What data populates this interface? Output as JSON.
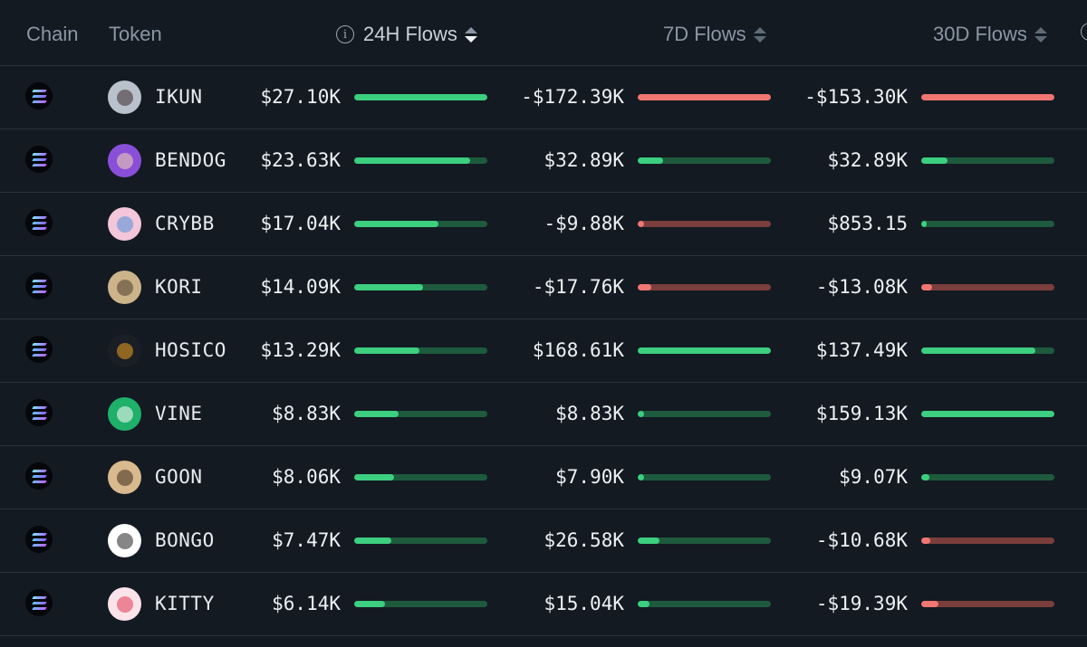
{
  "header": {
    "chain": "Chain",
    "token": "Token",
    "flows_24h": "24H Flows",
    "flows_7d": "7D Flows",
    "flows_30d": "30D Flows"
  },
  "colors": {
    "positive": "#3ccf7f",
    "negative": "#f07672",
    "background": "#131a22"
  },
  "rows": [
    {
      "symbol": "IKUN",
      "avatar": {
        "bg": "#b9c2cc",
        "fg": "#3a2a2a",
        "icon": "ikun-avatar"
      },
      "f24": {
        "text": "$27.10K",
        "fill": 1.0,
        "sign": "pos"
      },
      "f7": {
        "text": "-$172.39K",
        "fill": 1.0,
        "sign": "neg"
      },
      "f30": {
        "text": "-$153.30K",
        "fill": 1.0,
        "sign": "neg"
      }
    },
    {
      "symbol": "BENDOG",
      "avatar": {
        "bg": "#8a4fd8",
        "fg": "#f6d9b0",
        "icon": "bendog-avatar"
      },
      "f24": {
        "text": "$23.63K",
        "fill": 0.87,
        "sign": "pos"
      },
      "f7": {
        "text": "$32.89K",
        "fill": 0.19,
        "sign": "pos"
      },
      "f30": {
        "text": "$32.89K",
        "fill": 0.2,
        "sign": "pos"
      }
    },
    {
      "symbol": "CRYBB",
      "avatar": {
        "bg": "#f3c6d9",
        "fg": "#4a8fd8",
        "icon": "crybb-avatar"
      },
      "f24": {
        "text": "$17.04K",
        "fill": 0.63,
        "sign": "pos"
      },
      "f7": {
        "text": "-$9.88K",
        "fill": 0.05,
        "sign": "neg"
      },
      "f30": {
        "text": "$853.15",
        "fill": 0.0,
        "sign": "pos"
      }
    },
    {
      "symbol": "KORI",
      "avatar": {
        "bg": "#cdb38a",
        "fg": "#4a3a2a",
        "icon": "kori-avatar"
      },
      "f24": {
        "text": "$14.09K",
        "fill": 0.52,
        "sign": "pos"
      },
      "f7": {
        "text": "-$17.76K",
        "fill": 0.1,
        "sign": "neg"
      },
      "f30": {
        "text": "-$13.08K",
        "fill": 0.08,
        "sign": "neg"
      }
    },
    {
      "symbol": "HOSICO",
      "avatar": {
        "bg": "#1a1f26",
        "fg": "#f0a21e",
        "icon": "hosico-avatar"
      },
      "f24": {
        "text": "$13.29K",
        "fill": 0.49,
        "sign": "pos"
      },
      "f7": {
        "text": "$168.61K",
        "fill": 1.0,
        "sign": "pos"
      },
      "f30": {
        "text": "$137.49K",
        "fill": 0.86,
        "sign": "pos"
      }
    },
    {
      "symbol": "VINE",
      "avatar": {
        "bg": "#1fb06a",
        "fg": "#ffffff",
        "icon": "vine-avatar"
      },
      "f24": {
        "text": "$8.83K",
        "fill": 0.33,
        "sign": "pos"
      },
      "f7": {
        "text": "$8.83K",
        "fill": 0.05,
        "sign": "pos"
      },
      "f30": {
        "text": "$159.13K",
        "fill": 1.0,
        "sign": "pos"
      }
    },
    {
      "symbol": "GOON",
      "avatar": {
        "bg": "#d9b98e",
        "fg": "#3a2a1a",
        "icon": "goon-avatar"
      },
      "f24": {
        "text": "$8.06K",
        "fill": 0.3,
        "sign": "pos"
      },
      "f7": {
        "text": "$7.90K",
        "fill": 0.05,
        "sign": "pos"
      },
      "f30": {
        "text": "$9.07K",
        "fill": 0.06,
        "sign": "pos"
      }
    },
    {
      "symbol": "BONGO",
      "avatar": {
        "bg": "#ffffff",
        "fg": "#222222",
        "icon": "bongo-avatar"
      },
      "f24": {
        "text": "$7.47K",
        "fill": 0.28,
        "sign": "pos"
      },
      "f7": {
        "text": "$26.58K",
        "fill": 0.16,
        "sign": "pos"
      },
      "f30": {
        "text": "-$10.68K",
        "fill": 0.07,
        "sign": "neg"
      }
    },
    {
      "symbol": "KITTY",
      "avatar": {
        "bg": "#fbe3ea",
        "fg": "#e0394f",
        "icon": "kitty-avatar"
      },
      "f24": {
        "text": "$6.14K",
        "fill": 0.23,
        "sign": "pos"
      },
      "f7": {
        "text": "$15.04K",
        "fill": 0.09,
        "sign": "pos"
      },
      "f30": {
        "text": "-$19.39K",
        "fill": 0.13,
        "sign": "neg"
      }
    }
  ]
}
